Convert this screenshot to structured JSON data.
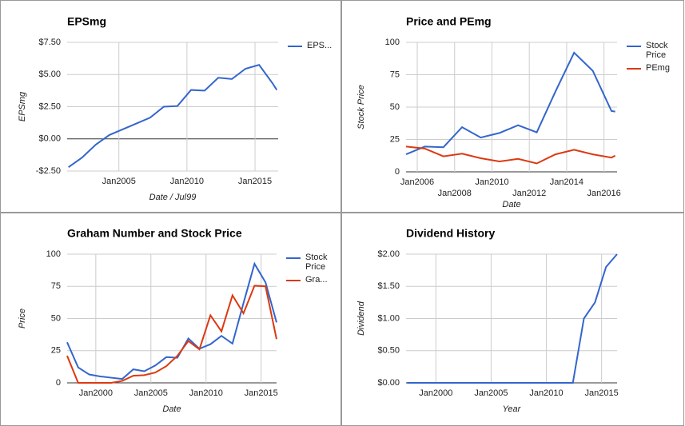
{
  "chart_data": [
    {
      "type": "line",
      "title": "EPSmg",
      "y_label": "EPSmg",
      "x_label": "Date / Jul99",
      "x": [
        2001.3,
        2002.3,
        2003.3,
        2004.3,
        2005.3,
        2006.3,
        2007.3,
        2008.3,
        2009.3,
        2010.3,
        2011.3,
        2012.3,
        2013.3,
        2014.3,
        2015.3,
        2016.3,
        2016.6
      ],
      "series": [
        {
          "name": "EPS...",
          "color": "#3366cc",
          "values": [
            -2.2,
            -1.45,
            -0.45,
            0.3,
            0.75,
            1.2,
            1.65,
            2.5,
            2.55,
            3.8,
            3.75,
            4.75,
            4.65,
            5.45,
            5.75,
            4.3,
            3.8
          ]
        }
      ],
      "xlim": [
        2001.2,
        2016.7
      ],
      "xticks": [
        {
          "value": 2005,
          "label": "Jan2005"
        },
        {
          "value": 2010,
          "label": "Jan2010"
        },
        {
          "value": 2015,
          "label": "Jan2015"
        }
      ],
      "ylim": [
        -2.5,
        7.5
      ],
      "yticks": [
        {
          "value": -2.5,
          "label": "-$2.50"
        },
        {
          "value": 0,
          "label": "$0.00"
        },
        {
          "value": 2.5,
          "label": "$2.50"
        },
        {
          "value": 5,
          "label": "$5.00"
        },
        {
          "value": 7.5,
          "label": "$7.50"
        }
      ],
      "grid": true,
      "legend": "right"
    },
    {
      "type": "line",
      "title": "Price and PEmg",
      "y_label": "Stock Price",
      "x_label": "Date",
      "x": [
        2005.4,
        2006.4,
        2007.4,
        2008.4,
        2009.4,
        2010.4,
        2011.4,
        2012.4,
        2013.4,
        2014.4,
        2015.4,
        2016.4,
        2016.6
      ],
      "series": [
        {
          "name": "Stock Price",
          "color": "#3366cc",
          "values": [
            13.5,
            19.5,
            19,
            34.5,
            26.5,
            30,
            36,
            30.5,
            62,
            92,
            78,
            47,
            46.5
          ]
        },
        {
          "name": "PEmg",
          "color": "#dc3912",
          "values": [
            19.5,
            18,
            12,
            14,
            10.5,
            8,
            10,
            6.5,
            13.5,
            17,
            13.5,
            11,
            12.5
          ]
        }
      ],
      "xlim": [
        2005.4,
        2016.7
      ],
      "xticks": [
        {
          "value": 2006,
          "label": "Jan2006"
        },
        {
          "value": 2008,
          "label": "Jan2008"
        },
        {
          "value": 2010,
          "label": "Jan2010"
        },
        {
          "value": 2012,
          "label": "Jan2012"
        },
        {
          "value": 2014,
          "label": "Jan2014"
        },
        {
          "value": 2016,
          "label": "Jan2016"
        }
      ],
      "ylim": [
        0,
        100
      ],
      "yticks": [
        0,
        25,
        50,
        75,
        100
      ],
      "grid": true,
      "legend": "right"
    },
    {
      "type": "line",
      "title": "Graham Number and Stock Price",
      "y_label": "Price",
      "x_label": "Date",
      "x": [
        1997.4,
        1998.4,
        1999.4,
        2000.4,
        2001.4,
        2002.4,
        2003.4,
        2004.4,
        2005.4,
        2006.4,
        2007.4,
        2008.4,
        2009.4,
        2010.4,
        2011.4,
        2012.4,
        2013.4,
        2014.4,
        2015.4,
        2016.4
      ],
      "series": [
        {
          "name": "Stock Price",
          "color": "#3366cc",
          "values": [
            31.5,
            12,
            6.5,
            5,
            4,
            3,
            10.5,
            9,
            13.5,
            20,
            19.5,
            34.5,
            26.5,
            30,
            36.5,
            30.5,
            62,
            92.5,
            78,
            47
          ]
        },
        {
          "name": "Gra...",
          "color": "#dc3912",
          "values": [
            21,
            0,
            0,
            0,
            0,
            1.5,
            5.5,
            6,
            8,
            13,
            21,
            32.5,
            26,
            52.5,
            40,
            68,
            54,
            75.5,
            75,
            34
          ]
        }
      ],
      "xlim": [
        1997.4,
        2016.4
      ],
      "xticks": [
        {
          "value": 2000,
          "label": "Jan2000"
        },
        {
          "value": 2005,
          "label": "Jan2005"
        },
        {
          "value": 2010,
          "label": "Jan2010"
        },
        {
          "value": 2015,
          "label": "Jan2015"
        }
      ],
      "ylim": [
        0,
        100
      ],
      "yticks": [
        0,
        25,
        50,
        75,
        100
      ],
      "grid": true,
      "legend": "right"
    },
    {
      "type": "line",
      "title": "Dividend History",
      "y_label": "Dividend",
      "x_label": "Year",
      "x": [
        1997.4,
        1998.4,
        1999.4,
        2000.4,
        2001.4,
        2002.4,
        2003.4,
        2004.4,
        2005.4,
        2006.4,
        2007.4,
        2008.4,
        2009.4,
        2010.4,
        2011.4,
        2012.4,
        2013.4,
        2014.4,
        2015.4,
        2016.4
      ],
      "series": [
        {
          "color": "#3366cc",
          "values": [
            0,
            0,
            0,
            0,
            0,
            0,
            0,
            0,
            0,
            0,
            0,
            0,
            0,
            0,
            0,
            0,
            1.0,
            1.25,
            1.8,
            2.0
          ]
        }
      ],
      "xlim": [
        1997.3,
        2016.4
      ],
      "xticks": [
        {
          "value": 2000,
          "label": "Jan2000"
        },
        {
          "value": 2005,
          "label": "Jan2005"
        },
        {
          "value": 2010,
          "label": "Jan2010"
        },
        {
          "value": 2015,
          "label": "Jan2015"
        }
      ],
      "ylim": [
        0,
        2
      ],
      "yticks": [
        {
          "value": 0,
          "label": "$0.00"
        },
        {
          "value": 0.5,
          "label": "$0.50"
        },
        {
          "value": 1,
          "label": "$1.00"
        },
        {
          "value": 1.5,
          "label": "$1.50"
        },
        {
          "value": 2,
          "label": "$2.00"
        }
      ],
      "grid": true
    }
  ]
}
